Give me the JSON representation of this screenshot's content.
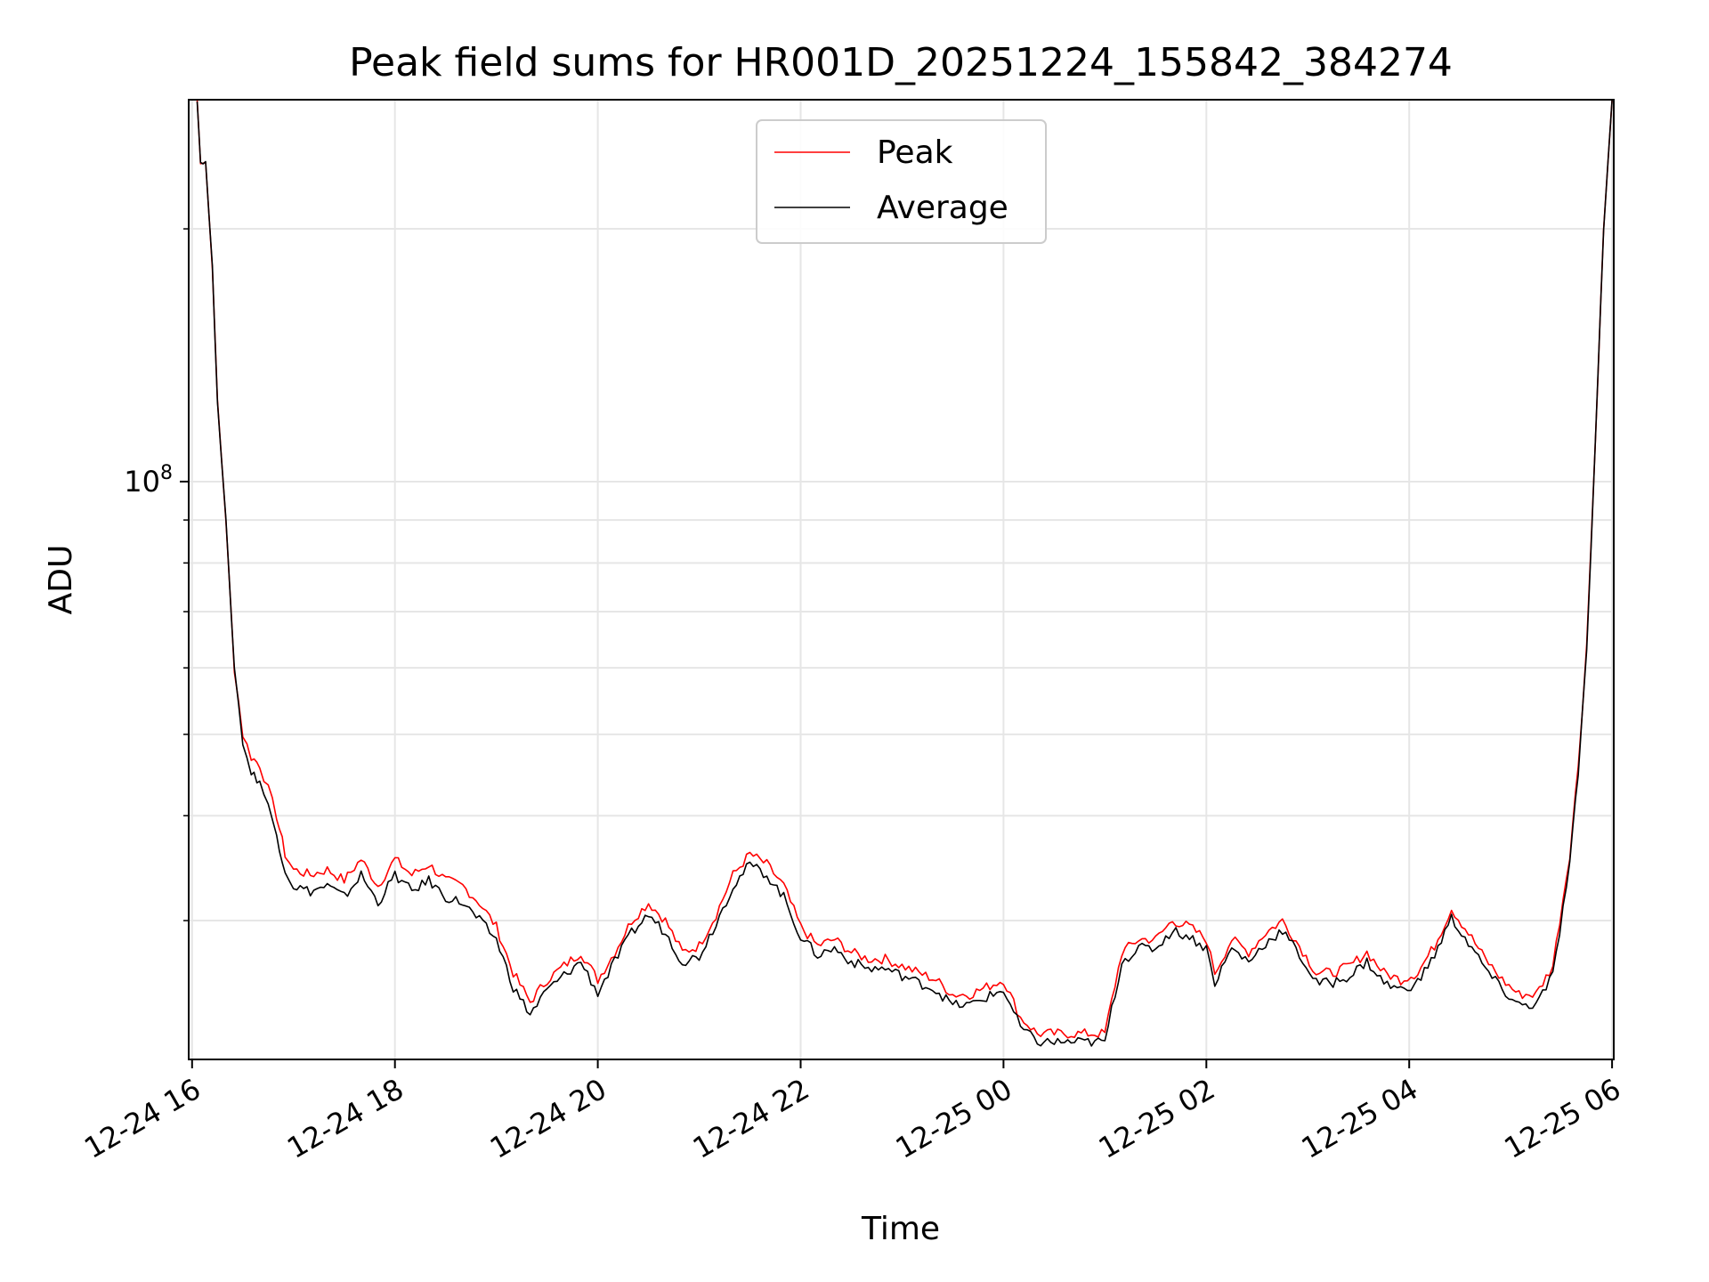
{
  "chart_data": {
    "type": "line",
    "title": "Peak field sums for HR001D_20251224_155842_384274",
    "xlabel": "Time",
    "ylabel": "ADU",
    "x_scale": "time",
    "y_scale": "log",
    "xlim": [
      "2024-12-24T15:58",
      "2025-12-25T06:01"
    ],
    "ylim": [
      20500000,
      285000000
    ],
    "grid": true,
    "legend_position": "upper center",
    "x_ticks": [
      {
        "label": "12-24 16",
        "t": "2024-12-24T16:00"
      },
      {
        "label": "12-24 18",
        "t": "2024-12-24T18:00"
      },
      {
        "label": "12-24 20",
        "t": "2024-12-24T20:00"
      },
      {
        "label": "12-24 22",
        "t": "2024-12-24T22:00"
      },
      {
        "label": "12-25 00",
        "t": "2025-12-25T00:00"
      },
      {
        "label": "12-25 02",
        "t": "2025-12-25T02:00"
      },
      {
        "label": "12-25 04",
        "t": "2025-12-25T04:00"
      },
      {
        "label": "12-25 06",
        "t": "2025-12-25T06:00"
      }
    ],
    "y_ticks": [
      {
        "value": 100000000,
        "base": "10",
        "exp": "8"
      }
    ],
    "series": [
      {
        "name": "Peak",
        "color": "#ff0000",
        "points": [
          [
            "2024-12-24T16:03",
            285000000
          ],
          [
            "2024-12-24T16:05",
            240000000
          ],
          [
            "2024-12-24T16:08",
            240000000
          ],
          [
            "2024-12-24T16:12",
            180000000
          ],
          [
            "2024-12-24T16:15",
            125000000
          ],
          [
            "2024-12-24T16:20",
            90000000
          ],
          [
            "2024-12-24T16:25",
            60000000
          ],
          [
            "2024-12-24T16:30",
            50000000
          ],
          [
            "2024-12-24T16:35",
            47000000
          ],
          [
            "2024-12-24T16:40",
            46000000
          ],
          [
            "2024-12-24T16:45",
            43000000
          ],
          [
            "2024-12-24T16:50",
            40000000
          ],
          [
            "2024-12-24T16:55",
            36000000
          ],
          [
            "2024-12-24T17:00",
            34500000
          ],
          [
            "2024-12-24T17:10",
            34000000
          ],
          [
            "2024-12-24T17:20",
            34500000
          ],
          [
            "2024-12-24T17:30",
            33500000
          ],
          [
            "2024-12-24T17:40",
            35500000
          ],
          [
            "2024-12-24T17:50",
            33000000
          ],
          [
            "2024-12-24T18:00",
            35500000
          ],
          [
            "2024-12-24T18:10",
            34000000
          ],
          [
            "2024-12-24T18:20",
            35000000
          ],
          [
            "2024-12-24T18:30",
            33500000
          ],
          [
            "2024-12-24T18:40",
            33000000
          ],
          [
            "2024-12-24T18:50",
            31500000
          ],
          [
            "2024-12-24T19:00",
            29500000
          ],
          [
            "2024-12-24T19:10",
            26000000
          ],
          [
            "2024-12-24T19:20",
            24000000
          ],
          [
            "2024-12-24T19:30",
            25500000
          ],
          [
            "2024-12-24T19:40",
            26500000
          ],
          [
            "2024-12-24T19:50",
            27500000
          ],
          [
            "2024-12-24T20:00",
            25500000
          ],
          [
            "2024-12-24T20:10",
            27500000
          ],
          [
            "2024-12-24T20:20",
            30000000
          ],
          [
            "2024-12-24T20:30",
            31500000
          ],
          [
            "2024-12-24T20:40",
            30000000
          ],
          [
            "2024-12-24T20:50",
            27500000
          ],
          [
            "2024-12-24T21:00",
            28000000
          ],
          [
            "2024-12-24T21:10",
            30500000
          ],
          [
            "2024-12-24T21:20",
            34000000
          ],
          [
            "2024-12-24T21:30",
            36000000
          ],
          [
            "2024-12-24T21:40",
            35000000
          ],
          [
            "2024-12-24T21:50",
            33000000
          ],
          [
            "2024-12-24T22:00",
            29500000
          ],
          [
            "2024-12-24T22:10",
            28000000
          ],
          [
            "2024-12-24T22:20",
            28500000
          ],
          [
            "2024-12-24T22:30",
            27500000
          ],
          [
            "2024-12-24T22:40",
            27000000
          ],
          [
            "2024-12-24T22:50",
            27000000
          ],
          [
            "2024-12-24T23:00",
            26500000
          ],
          [
            "2024-12-24T23:10",
            26000000
          ],
          [
            "2024-12-24T23:20",
            25500000
          ],
          [
            "2024-12-24T23:30",
            24500000
          ],
          [
            "2024-12-24T23:40",
            24500000
          ],
          [
            "2024-12-24T23:50",
            25000000
          ],
          [
            "2025-12-25T00:00",
            25500000
          ],
          [
            "2025-12-25T00:10",
            23000000
          ],
          [
            "2025-12-25T00:20",
            22000000
          ],
          [
            "2025-12-25T00:30",
            22000000
          ],
          [
            "2025-12-25T00:40",
            22000000
          ],
          [
            "2025-12-25T00:50",
            22000000
          ],
          [
            "2025-12-25T01:00",
            22000000
          ],
          [
            "2025-12-25T01:10",
            27500000
          ],
          [
            "2025-12-25T01:20",
            28500000
          ],
          [
            "2025-12-25T01:30",
            28500000
          ],
          [
            "2025-12-25T01:40",
            30000000
          ],
          [
            "2025-12-25T01:50",
            29500000
          ],
          [
            "2025-12-25T02:00",
            28500000
          ],
          [
            "2025-12-25T02:05",
            26000000
          ],
          [
            "2025-12-25T02:15",
            28500000
          ],
          [
            "2025-12-25T02:25",
            27500000
          ],
          [
            "2025-12-25T02:35",
            29000000
          ],
          [
            "2025-12-25T02:45",
            30000000
          ],
          [
            "2025-12-25T02:55",
            28000000
          ],
          [
            "2025-12-25T03:05",
            26000000
          ],
          [
            "2025-12-25T03:15",
            26000000
          ],
          [
            "2025-12-25T03:25",
            26500000
          ],
          [
            "2025-12-25T03:35",
            27500000
          ],
          [
            "2025-12-25T03:45",
            26000000
          ],
          [
            "2025-12-25T03:55",
            25500000
          ],
          [
            "2025-12-25T04:05",
            26000000
          ],
          [
            "2025-12-25T04:15",
            28000000
          ],
          [
            "2025-12-25T04:25",
            31000000
          ],
          [
            "2025-12-25T04:35",
            29000000
          ],
          [
            "2025-12-25T04:45",
            27000000
          ],
          [
            "2025-12-25T04:55",
            25500000
          ],
          [
            "2025-12-25T05:05",
            24500000
          ],
          [
            "2025-12-25T05:15",
            24500000
          ],
          [
            "2025-12-25T05:25",
            26500000
          ],
          [
            "2025-12-25T05:35",
            36000000
          ],
          [
            "2025-12-25T05:40",
            46000000
          ],
          [
            "2025-12-25T05:45",
            64000000
          ],
          [
            "2025-12-25T05:50",
            110000000
          ],
          [
            "2025-12-25T05:55",
            200000000
          ],
          [
            "2025-12-25T06:00",
            285000000
          ]
        ]
      },
      {
        "name": "Average",
        "color": "#000000",
        "points": [
          [
            "2024-12-24T16:03",
            285000000
          ],
          [
            "2024-12-24T16:05",
            240000000
          ],
          [
            "2024-12-24T16:08",
            240000000
          ],
          [
            "2024-12-24T16:12",
            180000000
          ],
          [
            "2024-12-24T16:15",
            125000000
          ],
          [
            "2024-12-24T16:20",
            90000000
          ],
          [
            "2024-12-24T16:25",
            60000000
          ],
          [
            "2024-12-24T16:30",
            49000000
          ],
          [
            "2024-12-24T16:35",
            45000000
          ],
          [
            "2024-12-24T16:40",
            44000000
          ],
          [
            "2024-12-24T16:45",
            41000000
          ],
          [
            "2024-12-24T16:50",
            38000000
          ],
          [
            "2024-12-24T16:55",
            34500000
          ],
          [
            "2024-12-24T17:00",
            33000000
          ],
          [
            "2024-12-24T17:10",
            32500000
          ],
          [
            "2024-12-24T17:20",
            33000000
          ],
          [
            "2024-12-24T17:30",
            32000000
          ],
          [
            "2024-12-24T17:40",
            34000000
          ],
          [
            "2024-12-24T17:50",
            31500000
          ],
          [
            "2024-12-24T18:00",
            34000000
          ],
          [
            "2024-12-24T18:10",
            32500000
          ],
          [
            "2024-12-24T18:20",
            33500000
          ],
          [
            "2024-12-24T18:30",
            32000000
          ],
          [
            "2024-12-24T18:40",
            31500000
          ],
          [
            "2024-12-24T18:50",
            30000000
          ],
          [
            "2024-12-24T19:00",
            28500000
          ],
          [
            "2024-12-24T19:10",
            25000000
          ],
          [
            "2024-12-24T19:20",
            23200000
          ],
          [
            "2024-12-24T19:30",
            24800000
          ],
          [
            "2024-12-24T19:40",
            25800000
          ],
          [
            "2024-12-24T19:50",
            26800000
          ],
          [
            "2024-12-24T20:00",
            24600000
          ],
          [
            "2024-12-24T20:10",
            26800000
          ],
          [
            "2024-12-24T20:20",
            29000000
          ],
          [
            "2024-12-24T20:30",
            30500000
          ],
          [
            "2024-12-24T20:40",
            29000000
          ],
          [
            "2024-12-24T20:50",
            26800000
          ],
          [
            "2024-12-24T21:00",
            27200000
          ],
          [
            "2024-12-24T21:10",
            29800000
          ],
          [
            "2024-12-24T21:20",
            33000000
          ],
          [
            "2024-12-24T21:30",
            35000000
          ],
          [
            "2024-12-24T21:40",
            34000000
          ],
          [
            "2024-12-24T21:50",
            32000000
          ],
          [
            "2024-12-24T22:00",
            28700000
          ],
          [
            "2024-12-24T22:10",
            27300000
          ],
          [
            "2024-12-24T22:20",
            27800000
          ],
          [
            "2024-12-24T22:30",
            26800000
          ],
          [
            "2024-12-24T22:40",
            26300000
          ],
          [
            "2024-12-24T22:50",
            26300000
          ],
          [
            "2024-12-24T23:00",
            25800000
          ],
          [
            "2024-12-24T23:10",
            25300000
          ],
          [
            "2024-12-24T23:20",
            24800000
          ],
          [
            "2024-12-24T23:30",
            23800000
          ],
          [
            "2024-12-24T23:40",
            23800000
          ],
          [
            "2024-12-24T23:50",
            24300000
          ],
          [
            "2025-12-25T00:00",
            24800000
          ],
          [
            "2025-12-25T00:10",
            22400000
          ],
          [
            "2025-12-25T00:20",
            21500000
          ],
          [
            "2025-12-25T00:30",
            21500000
          ],
          [
            "2025-12-25T00:40",
            21500000
          ],
          [
            "2025-12-25T00:50",
            21500000
          ],
          [
            "2025-12-25T01:00",
            21500000
          ],
          [
            "2025-12-25T01:10",
            26800000
          ],
          [
            "2025-12-25T01:20",
            27800000
          ],
          [
            "2025-12-25T01:30",
            27800000
          ],
          [
            "2025-12-25T01:40",
            29200000
          ],
          [
            "2025-12-25T01:50",
            28700000
          ],
          [
            "2025-12-25T02:00",
            27800000
          ],
          [
            "2025-12-25T02:05",
            25300000
          ],
          [
            "2025-12-25T02:15",
            27800000
          ],
          [
            "2025-12-25T02:25",
            26800000
          ],
          [
            "2025-12-25T02:35",
            28200000
          ],
          [
            "2025-12-25T02:45",
            29200000
          ],
          [
            "2025-12-25T02:55",
            27300000
          ],
          [
            "2025-12-25T03:05",
            25300000
          ],
          [
            "2025-12-25T03:15",
            25300000
          ],
          [
            "2025-12-25T03:25",
            25800000
          ],
          [
            "2025-12-25T03:35",
            26800000
          ],
          [
            "2025-12-25T03:45",
            25300000
          ],
          [
            "2025-12-25T03:55",
            24800000
          ],
          [
            "2025-12-25T04:05",
            25300000
          ],
          [
            "2025-12-25T04:15",
            27300000
          ],
          [
            "2025-12-25T04:25",
            30200000
          ],
          [
            "2025-12-25T04:35",
            28200000
          ],
          [
            "2025-12-25T04:45",
            26300000
          ],
          [
            "2025-12-25T04:55",
            24800000
          ],
          [
            "2025-12-25T05:05",
            23800000
          ],
          [
            "2025-12-25T05:15",
            23800000
          ],
          [
            "2025-12-25T05:25",
            25800000
          ],
          [
            "2025-12-25T05:35",
            35000000
          ],
          [
            "2025-12-25T05:40",
            45000000
          ],
          [
            "2025-12-25T05:45",
            63000000
          ],
          [
            "2025-12-25T05:50",
            110000000
          ],
          [
            "2025-12-25T05:55",
            200000000
          ],
          [
            "2025-12-25T06:00",
            285000000
          ]
        ]
      }
    ]
  }
}
